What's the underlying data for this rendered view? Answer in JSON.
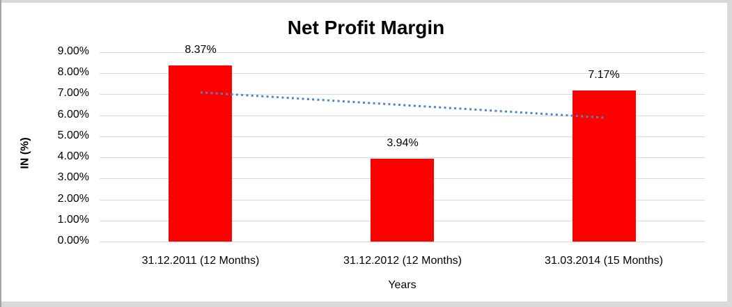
{
  "frame": {
    "edge_color": "#d9d9d9",
    "left_line_color": "#a3a3a3",
    "background": "#ffffff"
  },
  "chart_data": {
    "type": "bar",
    "title": "Net Profit Margin",
    "xlabel": "Years",
    "ylabel": "IN (%)",
    "categories": [
      "31.12.2011 (12 Months)",
      "31.12.2012 (12 Months)",
      "31.03.2014 (15 Months)"
    ],
    "values": [
      8.37,
      3.94,
      7.17
    ],
    "data_labels": [
      "8.37%",
      "3.94%",
      "7.17%"
    ],
    "ylim": [
      0,
      9
    ],
    "ytick_step": 1,
    "ytick_labels": [
      "9.00%",
      "8.00%",
      "7.00%",
      "6.00%",
      "5.00%",
      "4.00%",
      "3.00%",
      "2.00%",
      "1.00%",
      "0.00%"
    ],
    "grid": true,
    "gridline_color": "#d9d9d9",
    "legend": false,
    "bar_color": "#ff0000",
    "label_color": "#000000",
    "trendline": {
      "type": "linear",
      "style": "dotted",
      "color": "#4a86c6",
      "start_value": 7.09,
      "end_value": 5.89
    }
  }
}
